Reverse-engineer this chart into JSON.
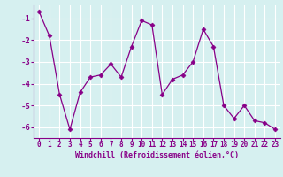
{
  "x": [
    0,
    1,
    2,
    3,
    4,
    5,
    6,
    7,
    8,
    9,
    10,
    11,
    12,
    13,
    14,
    15,
    16,
    17,
    18,
    19,
    20,
    21,
    22,
    23
  ],
  "y": [
    -0.7,
    -1.8,
    -4.5,
    -6.1,
    -4.4,
    -3.7,
    -3.6,
    -3.1,
    -3.7,
    -2.3,
    -1.1,
    -1.3,
    -4.5,
    -3.8,
    -3.6,
    -3.0,
    -1.5,
    -2.3,
    -5.0,
    -5.6,
    -5.0,
    -5.7,
    -5.8,
    -6.1
  ],
  "line_color": "#880088",
  "marker": "D",
  "marker_size": 2.5,
  "bg_color": "#d6f0f0",
  "grid_color": "#ffffff",
  "xlabel": "Windchill (Refroidissement éolien,°C)",
  "xlabel_color": "#880088",
  "tick_color": "#880088",
  "axis_color": "#880088",
  "ylim": [
    -6.5,
    -0.4
  ],
  "xlim": [
    -0.5,
    23.5
  ],
  "yticks": [
    -6,
    -5,
    -4,
    -3,
    -2,
    -1
  ],
  "xticks": [
    0,
    1,
    2,
    3,
    4,
    5,
    6,
    7,
    8,
    9,
    10,
    11,
    12,
    13,
    14,
    15,
    16,
    17,
    18,
    19,
    20,
    21,
    22,
    23
  ],
  "tick_fontsize": 5.5,
  "ytick_fontsize": 6.5,
  "xlabel_fontsize": 6.0
}
